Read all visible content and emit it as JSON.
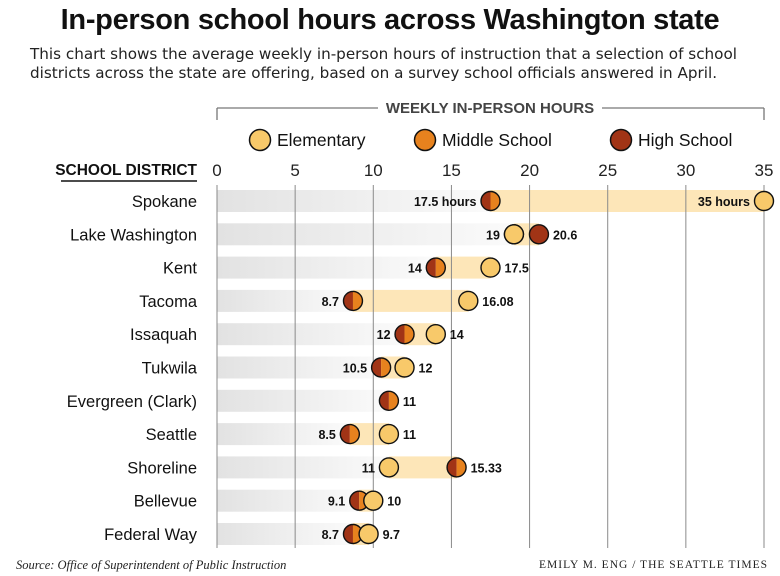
{
  "header": {
    "title": "In-person school hours across Washington state",
    "subtitle": "This chart shows the average weekly in-person hours of instruction that a selection of school districts across the state are offering, based on a survey school officials answered in April."
  },
  "footer": {
    "source": "Source: Office of Superintendent of Public Instruction",
    "credit": "EMILY M. ENG / THE SEATTLE TIMES"
  },
  "colors": {
    "elementary": "#f8c96a",
    "middle_school": "#e7821e",
    "high_school": "#a13416",
    "range_band": "#fde6b8",
    "row_band": "#e2e2e2",
    "gridline": "#8a8a8a"
  },
  "chart_data": {
    "type": "scatter",
    "title": "WEEKLY IN-PERSON HOURS",
    "ylabel": "SCHOOL DISTRICT",
    "xlim": [
      0,
      35
    ],
    "xticks": [
      0,
      5,
      10,
      15,
      20,
      25,
      30,
      35
    ],
    "grid": true,
    "legend_position": "top",
    "legend": [
      "Elementary",
      "Middle School",
      "High School"
    ],
    "categories": [
      "Spokane",
      "Lake Washington",
      "Kent",
      "Tacoma",
      "Issaquah",
      "Tukwila",
      "Evergreen (Clark)",
      "Seattle",
      "Shoreline",
      "Bellevue",
      "Federal Way"
    ],
    "series": [
      {
        "name": "Elementary",
        "values": [
          35,
          19,
          17.5,
          16.08,
          14,
          12,
          11,
          11,
          11,
          10,
          9.7
        ]
      },
      {
        "name": "Middle School",
        "values": [
          17.5,
          19,
          14,
          8.7,
          12,
          10.5,
          11,
          8.5,
          15.33,
          9.1,
          8.7
        ]
      },
      {
        "name": "High School",
        "values": [
          17.5,
          20.6,
          14,
          8.7,
          12,
          10.5,
          11,
          8.5,
          15.33,
          9.1,
          8.7
        ]
      }
    ],
    "labels": [
      {
        "district": "Spokane",
        "low": "17.5 hours",
        "high": "35 hours"
      },
      {
        "district": "Lake Washington",
        "low": "19",
        "high": "20.6"
      },
      {
        "district": "Kent",
        "low": "14",
        "high": "17.5"
      },
      {
        "district": "Tacoma",
        "low": "8.7",
        "high": "16.08"
      },
      {
        "district": "Issaquah",
        "low": "12",
        "high": "14"
      },
      {
        "district": "Tukwila",
        "low": "10.5",
        "high": "12"
      },
      {
        "district": "Evergreen (Clark)",
        "low": "",
        "high": "11"
      },
      {
        "district": "Seattle",
        "low": "8.5",
        "high": "11"
      },
      {
        "district": "Shoreline",
        "low": "11",
        "high": "15.33"
      },
      {
        "district": "Bellevue",
        "low": "9.1",
        "high": "10"
      },
      {
        "district": "Federal Way",
        "low": "8.7",
        "high": "9.7"
      }
    ]
  }
}
